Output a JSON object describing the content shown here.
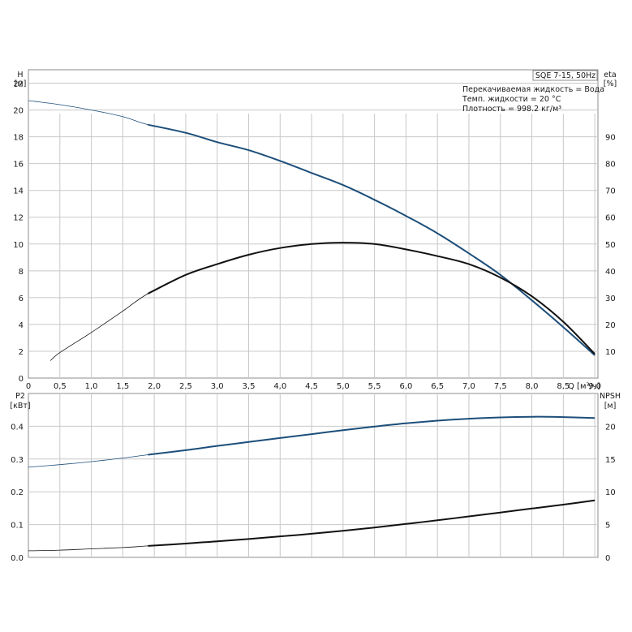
{
  "pump_badge": "SQE 7-15, 50Hz",
  "fluid_info": [
    "Перекачиваемая жидкость = Вода",
    "Темп. жидкости = 20 °C",
    "Плотность = 998.2 кг/м³"
  ],
  "colors": {
    "blue": "#1c4e7a",
    "black": "#111111",
    "grid": "#c8c8c8"
  },
  "chart_data": [
    {
      "type": "line",
      "x_label": "Q [м³/ч]",
      "x_ticks": [
        "0",
        "0,5",
        "1,0",
        "1,5",
        "2,0",
        "2,5",
        "3,0",
        "3,5",
        "4,0",
        "4,5",
        "5,0",
        "5,5",
        "6,0",
        "6,5",
        "7,0",
        "7,5",
        "8,0",
        "8,5",
        "9,0"
      ],
      "xlim": [
        0,
        9.05
      ],
      "left_axis": {
        "label_top": "H",
        "label_unit": "[м]",
        "ylim": [
          0,
          23
        ],
        "ticks": [
          "0",
          "2",
          "4",
          "6",
          "8",
          "10",
          "12",
          "14",
          "16",
          "18",
          "20",
          "22"
        ]
      },
      "right_axis": {
        "label_top": "eta",
        "label_unit": "[%]",
        "ylim": [
          0,
          115
        ],
        "ticks": [
          "10",
          "20",
          "30",
          "40",
          "50",
          "60",
          "70",
          "80",
          "90"
        ]
      },
      "series": [
        {
          "axis": "left",
          "color": "blue",
          "x": [
            0,
            0.5,
            1.0,
            1.5,
            1.9,
            2.5,
            3.0,
            3.5,
            4.0,
            4.5,
            5.0,
            5.5,
            6.0,
            6.5,
            7.0,
            7.5,
            8.0,
            8.5,
            9.0
          ],
          "y": [
            20.7,
            20.4,
            20.0,
            19.5,
            18.9,
            18.3,
            17.6,
            17.0,
            16.2,
            15.3,
            14.4,
            13.3,
            12.1,
            10.8,
            9.3,
            7.7,
            5.8,
            3.8,
            1.7
          ]
        },
        {
          "axis": "right",
          "color": "black",
          "x": [
            0.35,
            0.5,
            1.0,
            1.5,
            1.9,
            2.5,
            3.0,
            3.5,
            4.0,
            4.5,
            5.0,
            5.5,
            6.0,
            6.5,
            7.0,
            7.5,
            8.0,
            8.5,
            9.0
          ],
          "y": [
            6.5,
            9.5,
            17,
            25,
            31.5,
            38.5,
            42.5,
            46,
            48.5,
            50,
            50.5,
            50,
            48,
            45.5,
            42.5,
            37.5,
            30.5,
            21,
            9
          ]
        }
      ]
    },
    {
      "type": "line",
      "x_label": "",
      "xlim": [
        0,
        9.05
      ],
      "left_axis": {
        "label_top": "P2",
        "label_unit": "[кВт]",
        "ylim": [
          0,
          0.5
        ],
        "ticks": [
          "0.0",
          "0.1",
          "0.2",
          "0.3",
          "0.4"
        ]
      },
      "right_axis": {
        "label_top": "NPSH",
        "label_unit": "[м]",
        "ylim": [
          0,
          25
        ],
        "ticks": [
          "0",
          "5",
          "10",
          "15",
          "20"
        ]
      },
      "series": [
        {
          "axis": "left",
          "color": "blue",
          "x": [
            0,
            0.5,
            1.0,
            1.5,
            1.9,
            2.5,
            3.0,
            3.5,
            4.0,
            4.5,
            5.0,
            5.5,
            6.0,
            6.5,
            7.0,
            7.5,
            8.0,
            8.5,
            9.0
          ],
          "y": [
            0.275,
            0.283,
            0.292,
            0.303,
            0.313,
            0.327,
            0.34,
            0.352,
            0.364,
            0.376,
            0.388,
            0.399,
            0.409,
            0.417,
            0.423,
            0.427,
            0.429,
            0.428,
            0.425
          ]
        },
        {
          "axis": "right",
          "color": "black",
          "x": [
            0,
            0.5,
            1.0,
            1.5,
            1.9,
            2.5,
            3.0,
            3.5,
            4.0,
            4.5,
            5.0,
            5.5,
            6.0,
            6.5,
            7.0,
            7.5,
            8.0,
            8.5,
            9.0
          ],
          "y": [
            1.0,
            1.1,
            1.3,
            1.5,
            1.75,
            2.1,
            2.45,
            2.8,
            3.2,
            3.6,
            4.05,
            4.55,
            5.1,
            5.65,
            6.25,
            6.85,
            7.45,
            8.05,
            8.7
          ]
        }
      ]
    }
  ]
}
